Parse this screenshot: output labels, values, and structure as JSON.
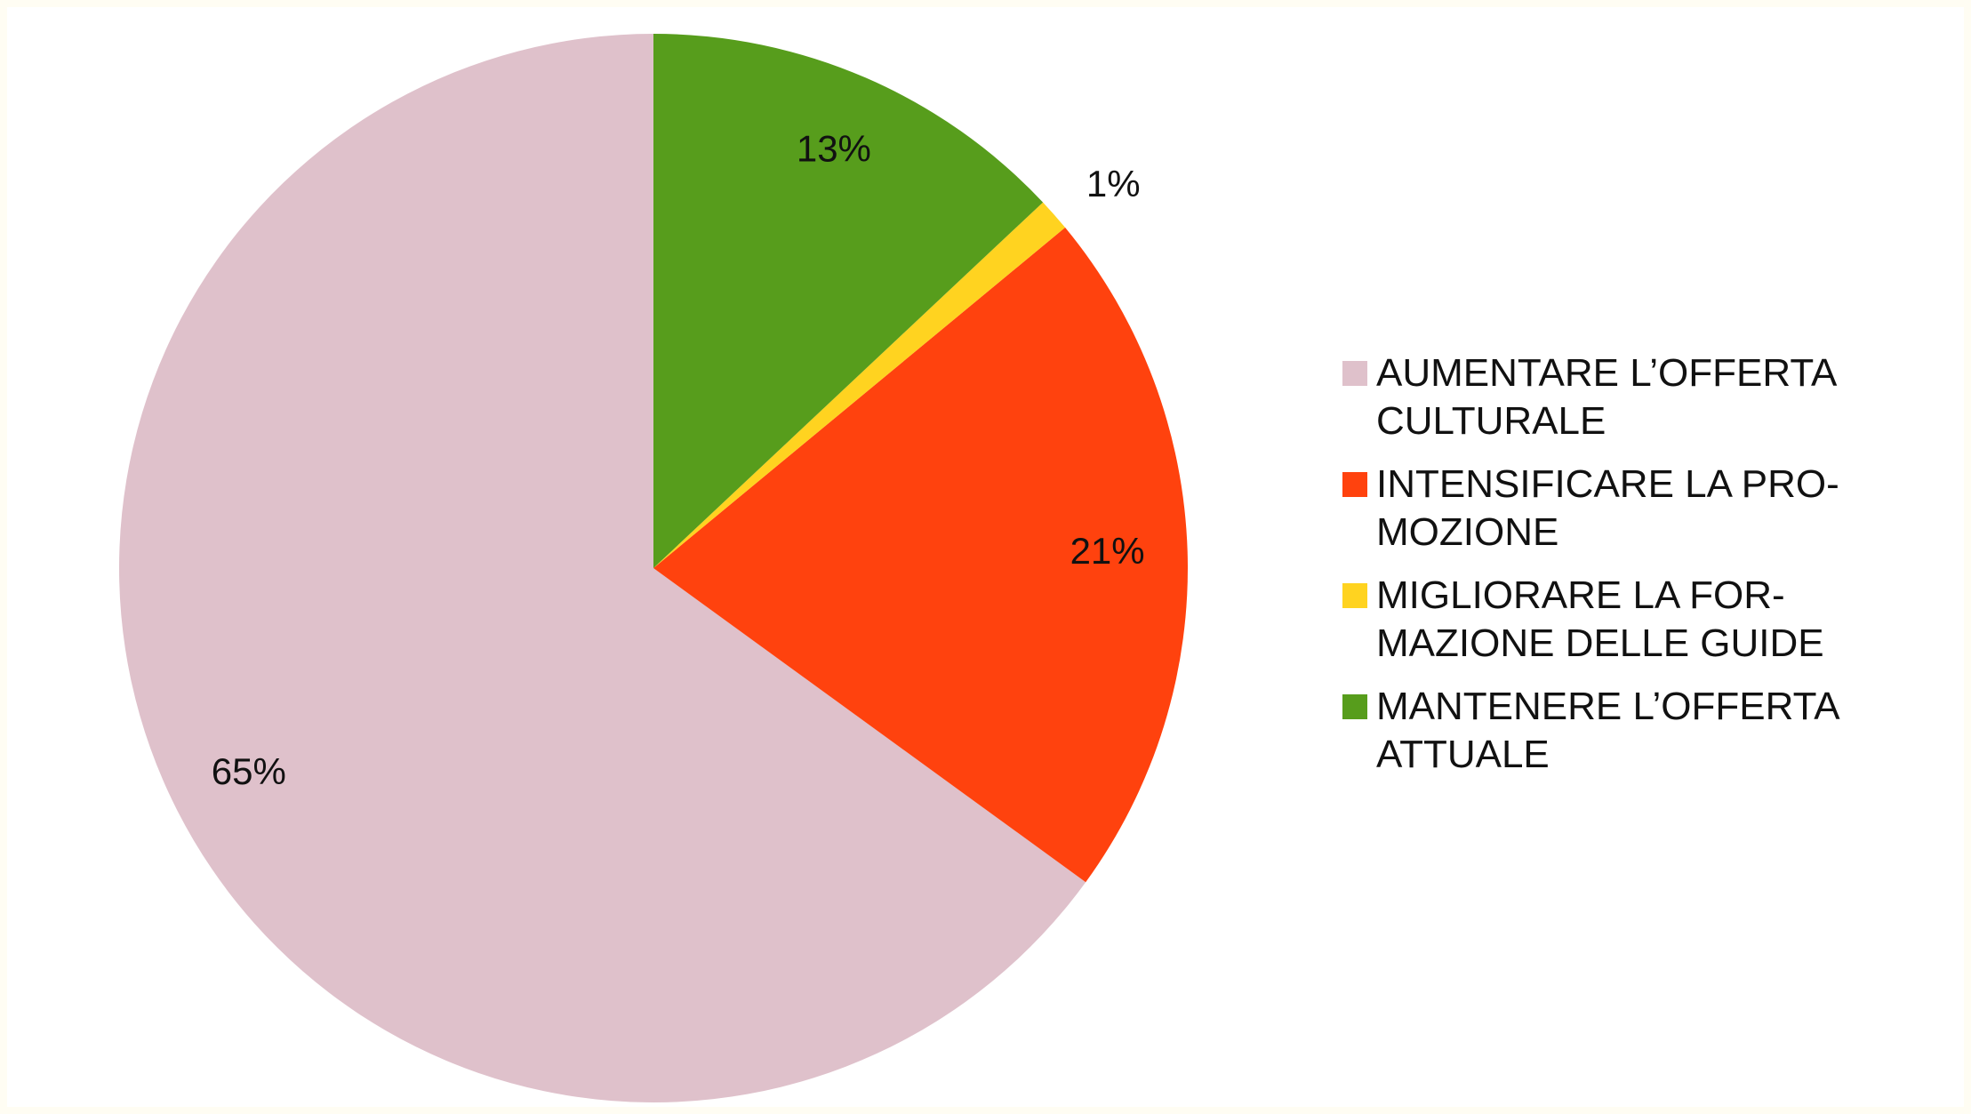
{
  "chart_data": {
    "type": "pie",
    "series": [
      {
        "name": "AUMENTARE L’OFFERTA\nCULTURALE",
        "color": "#dfc1cb",
        "values": [
          65
        ]
      },
      {
        "name": "INTENSIFICARE LA PRO-\nMOZIONE",
        "color": "#ff420e",
        "values": [
          21
        ]
      },
      {
        "name": "MIGLIORARE LA FOR-\nMAZIONE DELLE GUIDE",
        "color": "#ffd320",
        "values": [
          1
        ]
      },
      {
        "name": "MANTENERE L’OFFERTA\nATTUALE",
        "color": "#579d1c",
        "values": [
          13
        ]
      }
    ],
    "value_labels": [
      "65%",
      "21%",
      "1%",
      "13%"
    ],
    "legend": "right"
  }
}
